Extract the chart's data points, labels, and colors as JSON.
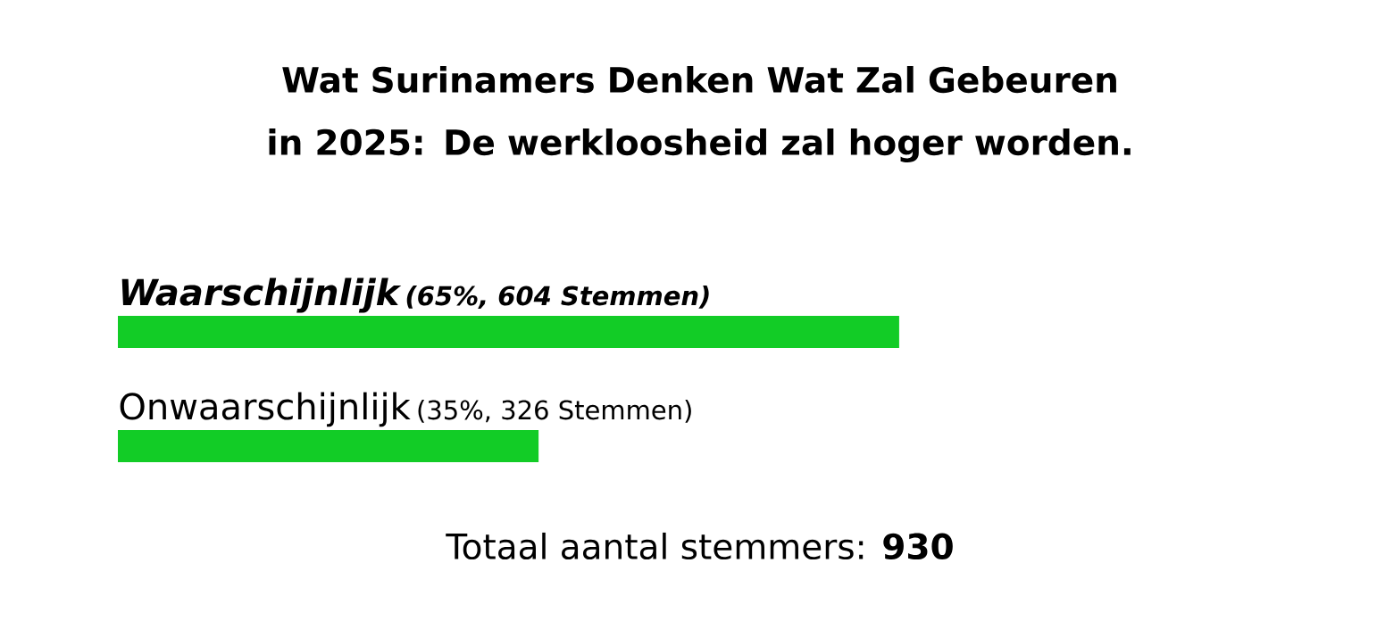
{
  "chart_data": {
    "type": "bar",
    "orientation": "horizontal",
    "title": "Wat Surinamers Denken Wat Zal Gebeuren in 2025: De werkloosheid zal hoger worden.",
    "categories": [
      "Waarschijnlijk",
      "Onwaarschijnlijk"
    ],
    "values": [
      65,
      35
    ],
    "value_labels": [
      "(65%, 604 Stemmen)",
      "(35%, 326 Stemmen)"
    ],
    "color": "#12cc26",
    "annotations": [
      "Totaal aantal stemmers: **930**"
    ]
  }
}
